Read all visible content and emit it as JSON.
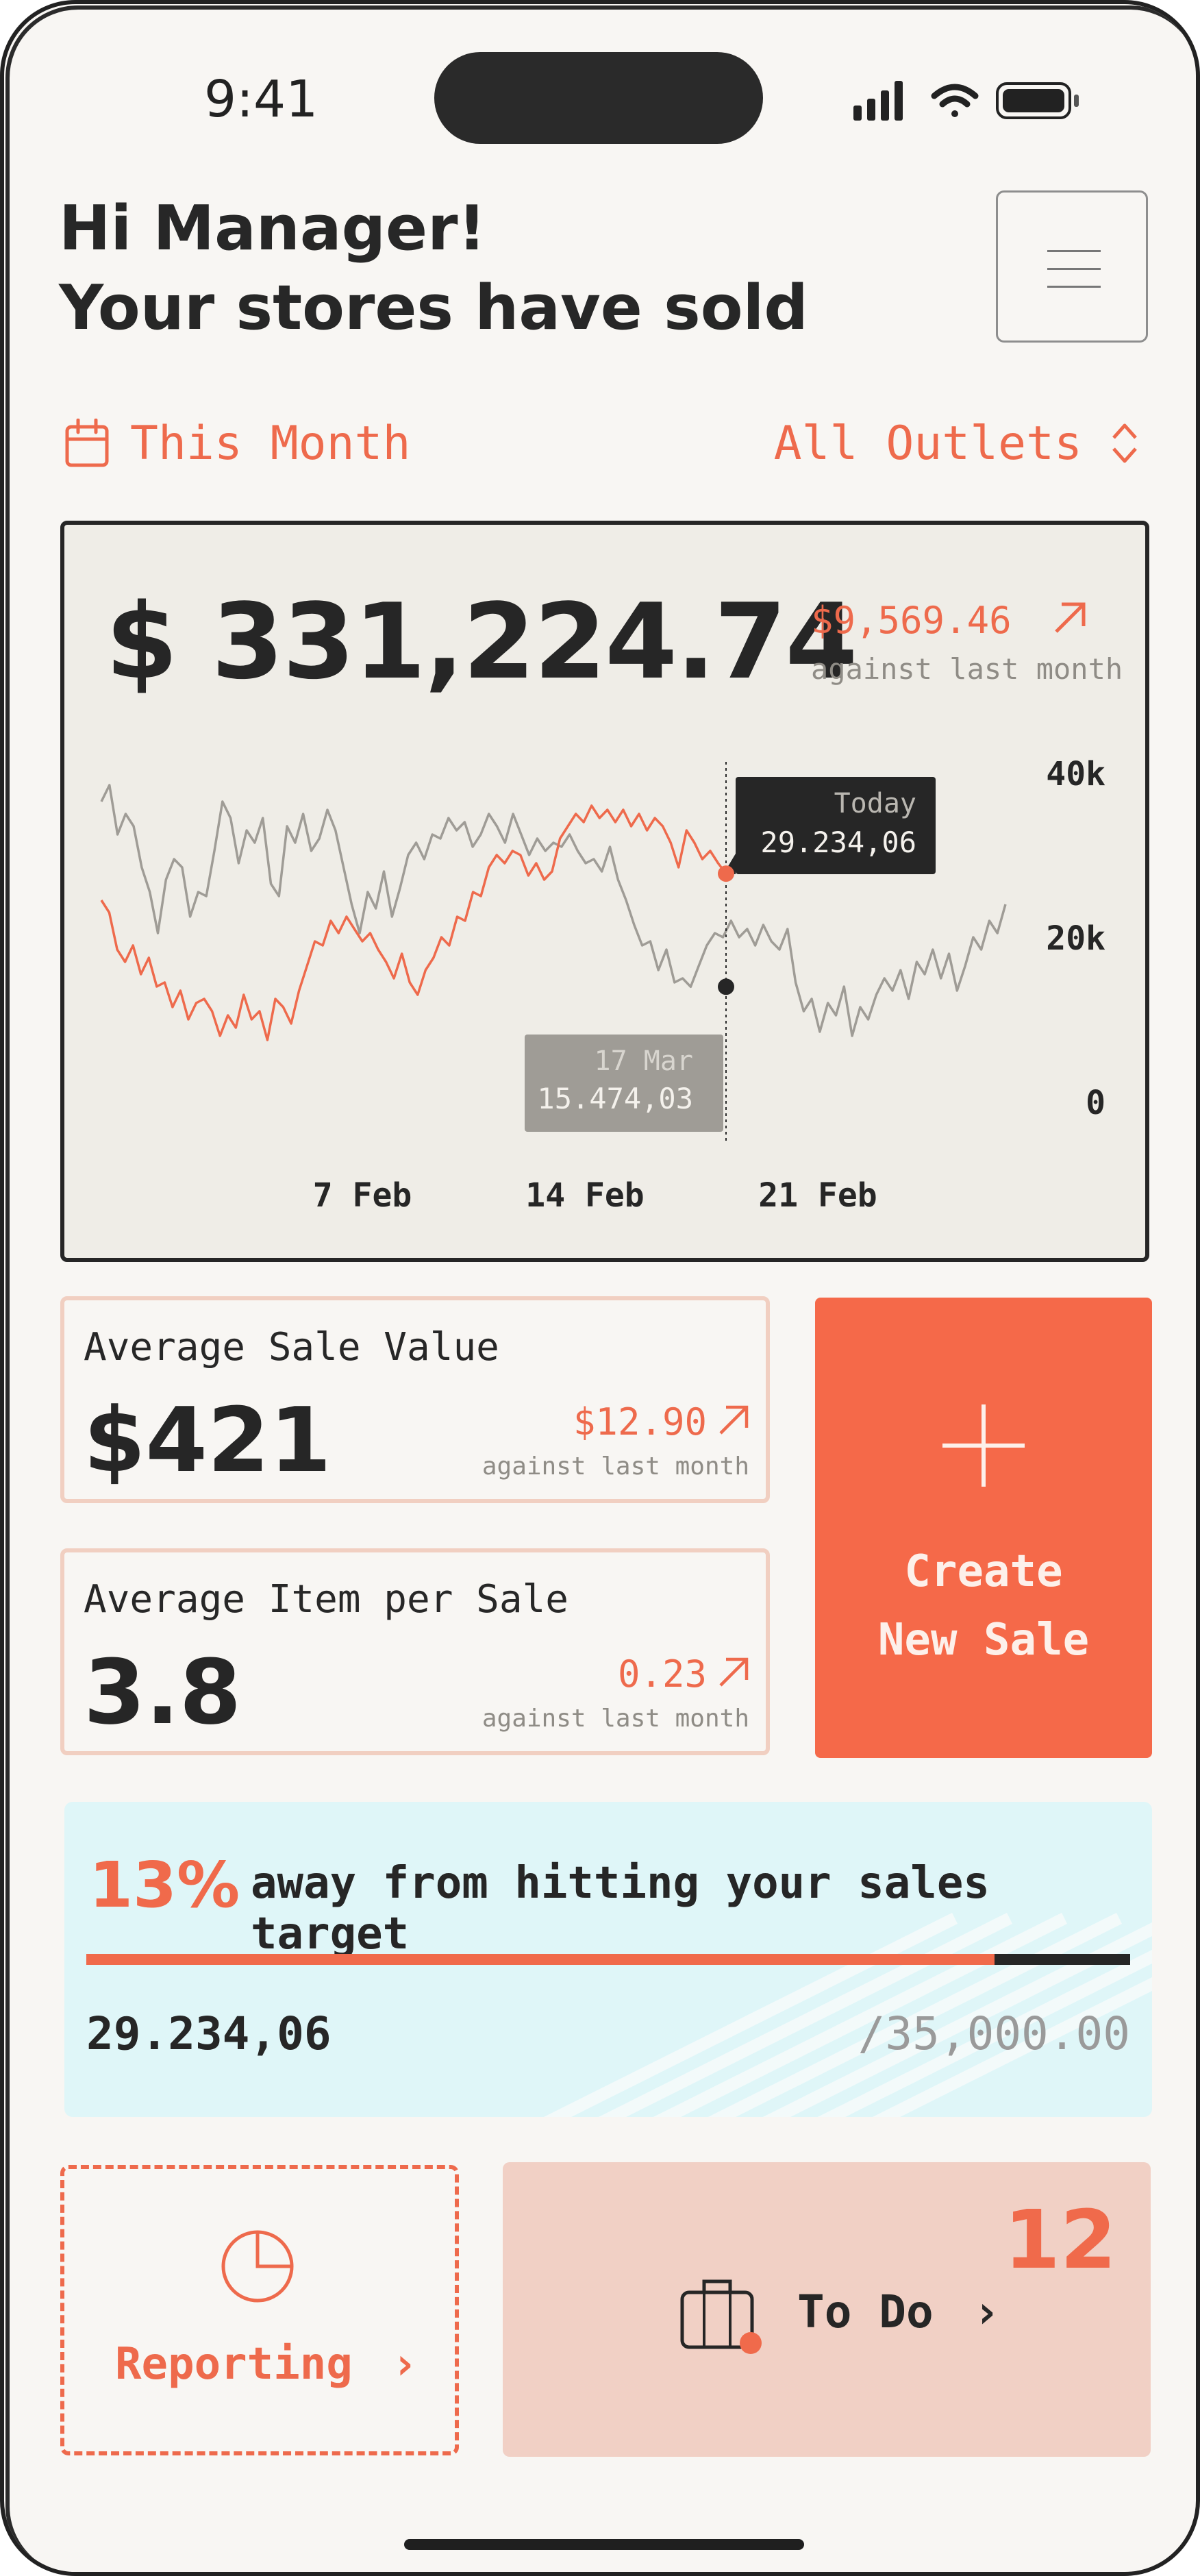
{
  "status_bar": {
    "time": "9:41"
  },
  "header": {
    "greeting_line1": "Hi Manager!",
    "greeting_line2": "Your stores have sold",
    "menu_icon": "hamburger-icon"
  },
  "filters": {
    "period_label": "This Month",
    "period_icon": "calendar-icon",
    "outlet_label": "All Outlets",
    "outlet_icon": "chevron-up-down-icon"
  },
  "sales_card": {
    "total": "$ 331,224.74",
    "delta": "$9,569.46",
    "delta_caption": "against last month",
    "tooltip_current_title": "Today",
    "tooltip_current_value": "29.234,06",
    "tooltip_previous_title": "17 Mar",
    "tooltip_previous_value": "15.474,03"
  },
  "chart_data": {
    "type": "line",
    "y_ticks": [
      "40k",
      "20k",
      "0"
    ],
    "x_ticks": [
      "7 Feb",
      "14 Feb",
      "21 Feb"
    ],
    "ylim": [
      0,
      45000
    ],
    "colors": {
      "current": "#ee6a4c",
      "previous": "#9f9c96"
    },
    "series": [
      {
        "values": [
          26000,
          24500,
          20000,
          18500,
          20500,
          17000,
          19000,
          15500,
          16000,
          13000,
          15000,
          11500,
          13500,
          14000,
          12500,
          9500,
          12000,
          10500,
          14500,
          11500,
          12500,
          9000,
          14000,
          13000,
          11000,
          15000,
          18000,
          21000,
          20500,
          23500,
          22000,
          24000,
          22500,
          21000,
          22000,
          20000,
          18500,
          16500,
          19500,
          16000,
          14500,
          17500,
          19000,
          21500,
          20500,
          24000,
          23500,
          27000,
          26500,
          30000,
          31500,
          30500,
          32000,
          31500,
          29000,
          30500,
          28500,
          29500,
          33500,
          35000,
          36500,
          35500,
          37500,
          36000,
          37000,
          35500,
          37000,
          35000,
          36500,
          34500,
          36000,
          35000,
          33000,
          30000,
          34500,
          33000,
          31000,
          32000,
          30500,
          29234
        ]
      },
      {
        "values": [
          38000,
          40000,
          34000,
          36500,
          35000,
          30000,
          27000,
          22000,
          28500,
          31000,
          30000,
          24000,
          27000,
          26500,
          32000,
          38000,
          36000,
          30500,
          34500,
          33000,
          36000,
          28000,
          26500,
          35000,
          33000,
          36500,
          32000,
          33500,
          37000,
          34500,
          30000,
          25500,
          22000,
          27000,
          25000,
          29500,
          24000,
          27500,
          31500,
          33000,
          31000,
          34000,
          33500,
          36000,
          34500,
          35500,
          32500,
          34000,
          36500,
          35000,
          33000,
          36500,
          34000,
          31500,
          33500,
          32000,
          33000,
          32500,
          34000,
          32000,
          30500,
          31000,
          29500,
          32500,
          28500,
          26000,
          23000,
          20500,
          21000,
          17500,
          20000,
          16000,
          16500,
          15474,
          18000,
          20500,
          22000,
          21500,
          23500,
          21500,
          22500,
          20500,
          23000,
          21000,
          20000,
          22500,
          16000,
          12500,
          14000,
          10000,
          13500,
          12000,
          15500,
          9500,
          13000,
          11500,
          14500,
          16500,
          15000,
          17500,
          14000,
          18500,
          17000,
          20000,
          16500,
          19500,
          15000,
          18000,
          21500,
          20000,
          23500,
          22000,
          25500
        ]
      }
    ]
  },
  "stats": [
    {
      "label": "Average Sale Value",
      "value": "$421",
      "delta": "$12.90",
      "caption": "against last month"
    },
    {
      "label": "Average Item per Sale",
      "value": "3.8",
      "delta": "0.23",
      "caption": "against last month"
    }
  ],
  "create_button": {
    "line1": "Create",
    "line2": "New Sale",
    "icon": "plus-icon"
  },
  "target": {
    "percent_away": "13%",
    "text": "away from hitting your sales target",
    "progress": 0.87,
    "current": "29.234,06",
    "goal": "/35,000.00"
  },
  "reporting": {
    "label": "Reporting",
    "icon": "pie-chart-icon"
  },
  "todo": {
    "label": "To Do",
    "count": "12",
    "icon": "briefcase-icon"
  }
}
